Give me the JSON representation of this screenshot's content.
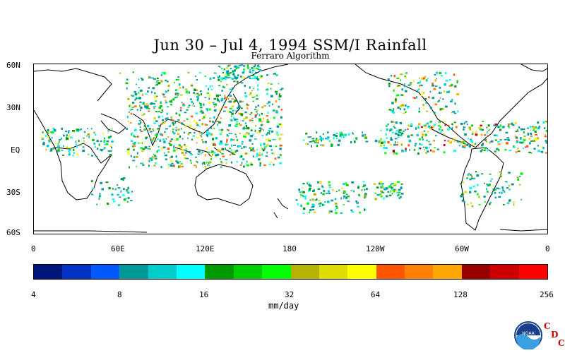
{
  "title": "Jun 30 – Jul 4, 1994 SSM/I Rainfall",
  "subtitle": "Ferraro Algorithm",
  "map": {
    "lat_ticks": [
      "60N",
      "30N",
      "EQ",
      "30S",
      "60S"
    ],
    "lon_ticks": [
      "0",
      "60E",
      "120E",
      "180",
      "120W",
      "60W",
      "0"
    ]
  },
  "colorbar": {
    "colors": [
      "#00157a",
      "#0033c2",
      "#0059ff",
      "#00999a",
      "#00cccc",
      "#00ffff",
      "#009900",
      "#00cc00",
      "#00ff00",
      "#b3b300",
      "#dddd00",
      "#ffff00",
      "#ff5500",
      "#ff8000",
      "#ffa600",
      "#990000",
      "#cc0000",
      "#ff0000"
    ],
    "tick_labels": [
      "4",
      "8",
      "16",
      "32",
      "64",
      "128",
      "256"
    ],
    "units": "mm/day"
  },
  "logos": {
    "noaa": "NOAA",
    "cdc": [
      "C",
      "D",
      "C"
    ]
  }
}
